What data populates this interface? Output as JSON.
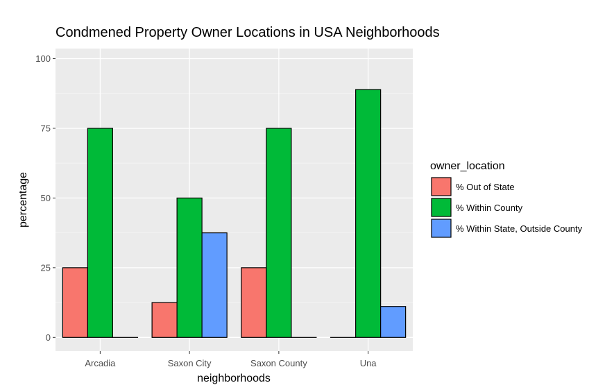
{
  "chart_data": {
    "type": "bar",
    "title": "Condmened Property Owner Locations in USA Neighborhoods",
    "xlabel": "neighborhoods",
    "ylabel": "percentage",
    "categories": [
      "Arcadia",
      "Saxon City",
      "Saxon County",
      "Una"
    ],
    "yticks": [
      0,
      25,
      50,
      75,
      100
    ],
    "ylim": [
      0,
      100
    ],
    "grid": true,
    "legend_title": "owner_location",
    "legend_position": "right",
    "series": [
      {
        "name": "% Out of State",
        "color": "#F8766D",
        "values": [
          25,
          12.5,
          25,
          0
        ]
      },
      {
        "name": "% Within County",
        "color": "#00BA38",
        "values": [
          75,
          50,
          75,
          88.9
        ]
      },
      {
        "name": "% Within State, Outside County",
        "color": "#619CFF",
        "values": [
          0,
          37.5,
          0,
          11.1
        ]
      }
    ]
  }
}
